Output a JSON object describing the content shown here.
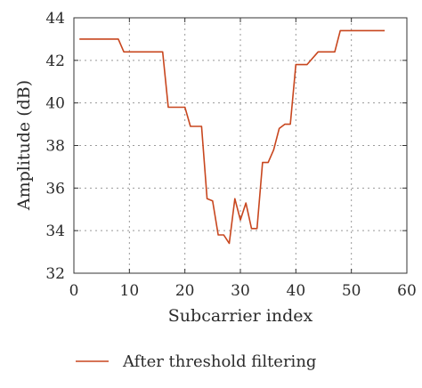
{
  "chart_data": {
    "type": "line",
    "xlabel": "Subcarrier index",
    "ylabel": "Amplitude (dB)",
    "xlim": [
      0,
      60
    ],
    "ylim": [
      32,
      44
    ],
    "xticks": [
      0,
      10,
      20,
      30,
      40,
      50,
      60
    ],
    "yticks": [
      32,
      34,
      36,
      38,
      40,
      42,
      44
    ],
    "grid": true,
    "legend_position": "bottom",
    "series": [
      {
        "name": "After threshold filtering",
        "color": "#c8461e",
        "x": [
          1,
          8,
          9,
          16,
          17,
          19,
          20,
          21,
          23,
          24,
          25,
          26,
          27,
          28,
          29,
          30,
          31,
          32,
          33,
          34,
          35,
          36,
          37,
          38,
          39,
          40,
          41,
          42,
          44,
          45,
          47,
          48,
          49,
          56
        ],
        "y": [
          43.0,
          43.0,
          42.4,
          42.4,
          39.8,
          39.8,
          39.8,
          38.9,
          38.9,
          35.5,
          35.4,
          33.8,
          33.8,
          33.4,
          35.5,
          34.5,
          35.3,
          34.1,
          34.1,
          37.2,
          37.2,
          37.8,
          38.8,
          39.0,
          39.0,
          41.8,
          41.8,
          41.8,
          42.4,
          42.4,
          42.4,
          43.4,
          43.4,
          43.4
        ]
      }
    ]
  }
}
